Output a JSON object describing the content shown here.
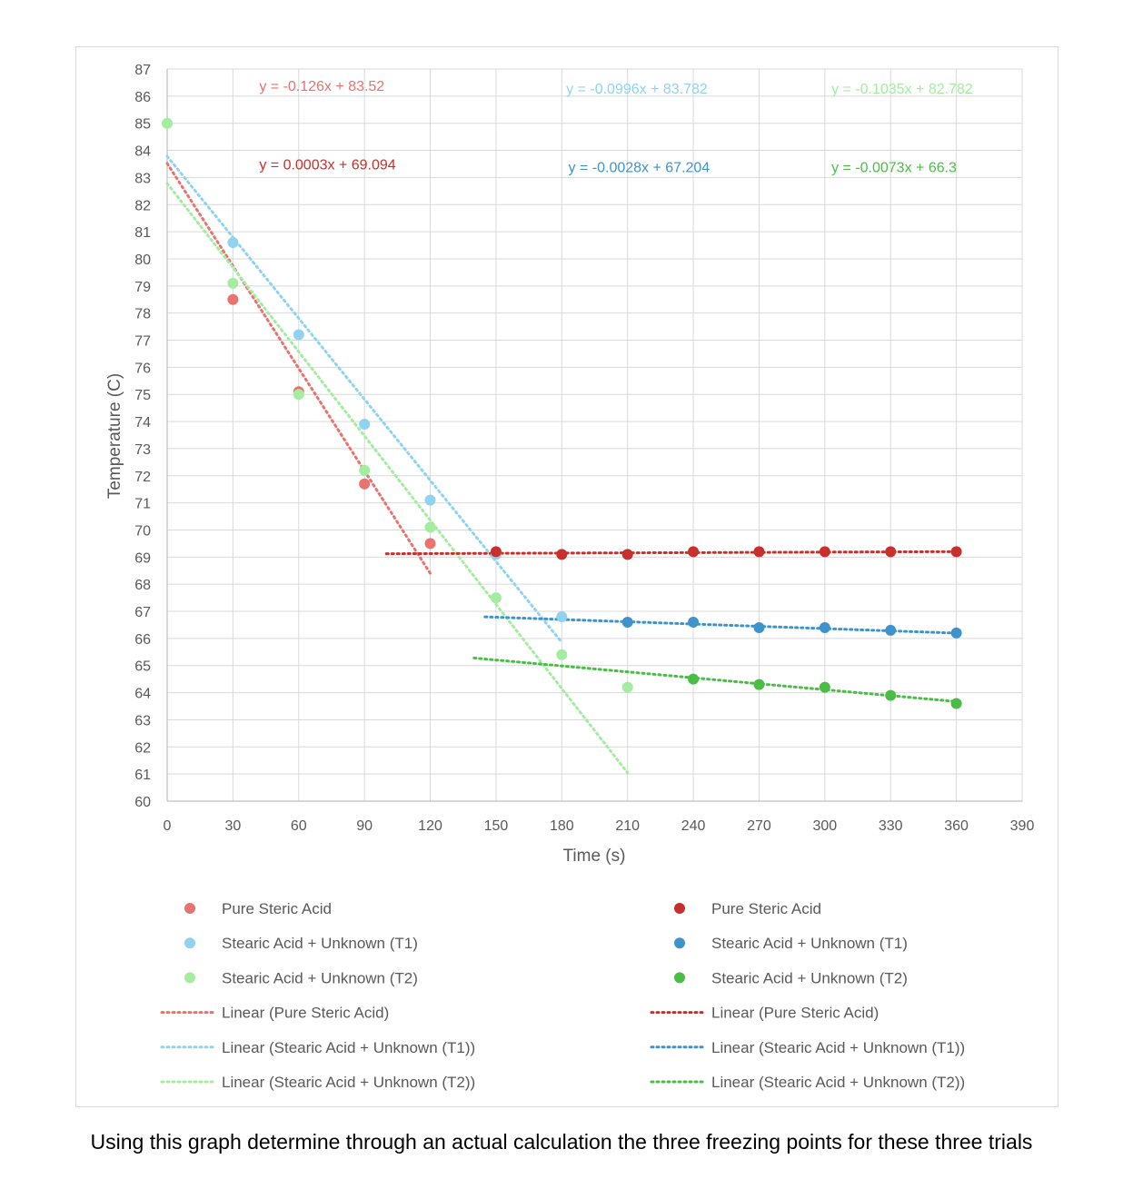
{
  "colors": {
    "pure_light": "#e8736f",
    "t1_light": "#8fd3f1",
    "t2_light": "#a3eca0",
    "pure_dark": "#c8302c",
    "t1_dark": "#3f93cc",
    "t2_dark": "#4bbd46",
    "grid": "#d9d9d9",
    "text": "#595959"
  },
  "chart_data": {
    "type": "scatter",
    "xlabel": "Time (s)",
    "ylabel": "Temperature (C)",
    "xlim": [
      0,
      390
    ],
    "ylim": [
      60,
      87
    ],
    "x_ticks": [
      0,
      30,
      60,
      90,
      120,
      150,
      180,
      210,
      240,
      270,
      300,
      330,
      360,
      390
    ],
    "y_ticks": [
      60,
      61,
      62,
      63,
      64,
      65,
      66,
      67,
      68,
      69,
      70,
      71,
      72,
      73,
      74,
      75,
      76,
      77,
      78,
      79,
      80,
      81,
      82,
      83,
      84,
      85,
      86,
      87
    ],
    "grid": true,
    "legend_position": "bottom, two columns",
    "series": [
      {
        "name": "Pure Steric Acid",
        "color": "#e8736f",
        "points": [
          [
            30,
            78.5
          ],
          [
            60,
            75.1
          ],
          [
            90,
            71.7
          ],
          [
            120,
            69.5
          ]
        ],
        "trend": {
          "name": "Linear (Pure Steric Acid)",
          "slope": -0.126,
          "intercept": 83.52,
          "x_range": [
            0,
            120
          ],
          "label": "y = -0.126x + 83.52",
          "label_at": [
            42,
            86.2
          ]
        }
      },
      {
        "name": "Stearic Acid + Unknown (T1)",
        "color": "#8fd3f1",
        "points": [
          [
            30,
            80.6
          ],
          [
            60,
            77.2
          ],
          [
            90,
            73.9
          ],
          [
            120,
            71.1
          ],
          [
            150,
            69.1
          ],
          [
            180,
            66.8
          ]
        ],
        "trend": {
          "name": "Linear (Stearic Acid + Unknown (T1))",
          "slope": -0.0996,
          "intercept": 83.782,
          "x_range": [
            0,
            180
          ],
          "label": "y = -0.0996x + 83.782",
          "label_at": [
            182,
            86.1
          ]
        }
      },
      {
        "name": "Stearic Acid + Unknown (T2)",
        "color": "#a3eca0",
        "points": [
          [
            0,
            85.0
          ],
          [
            30,
            79.1
          ],
          [
            60,
            75.0
          ],
          [
            90,
            72.2
          ],
          [
            120,
            70.1
          ],
          [
            150,
            67.5
          ],
          [
            180,
            65.4
          ],
          [
            210,
            64.2
          ]
        ],
        "trend": {
          "name": "Linear (Stearic Acid + Unknown (T2))",
          "slope": -0.1035,
          "intercept": 82.782,
          "x_range": [
            0,
            210
          ],
          "label": "y = -0.1035x + 82.782",
          "label_at": [
            303,
            86.1
          ]
        }
      },
      {
        "name": "Pure Steric Acid",
        "color": "#c8302c",
        "points": [
          [
            150,
            69.2
          ],
          [
            180,
            69.1
          ],
          [
            210,
            69.1
          ],
          [
            240,
            69.2
          ],
          [
            270,
            69.2
          ],
          [
            300,
            69.2
          ],
          [
            330,
            69.2
          ],
          [
            360,
            69.2
          ]
        ],
        "trend": {
          "name": "Linear (Pure Steric Acid)",
          "slope": 0.0003,
          "intercept": 69.094,
          "x_range": [
            100,
            360
          ],
          "label": "y = 0.0003x + 69.094",
          "label_at": [
            42,
            83.3
          ]
        }
      },
      {
        "name": "Stearic Acid + Unknown (T1)",
        "color": "#3f93cc",
        "points": [
          [
            210,
            66.6
          ],
          [
            240,
            66.6
          ],
          [
            270,
            66.4
          ],
          [
            300,
            66.4
          ],
          [
            330,
            66.3
          ],
          [
            360,
            66.2
          ]
        ],
        "trend": {
          "name": "Linear (Stearic Acid + Unknown (T1))",
          "slope": -0.0028,
          "intercept": 67.204,
          "x_range": [
            145,
            360
          ],
          "label": "y = -0.0028x + 67.204",
          "label_at": [
            183,
            83.2
          ]
        }
      },
      {
        "name": "Stearic Acid + Unknown (T2)",
        "color": "#4bbd46",
        "points": [
          [
            240,
            64.5
          ],
          [
            270,
            64.3
          ],
          [
            300,
            64.2
          ],
          [
            330,
            63.9
          ],
          [
            360,
            63.6
          ]
        ],
        "trend": {
          "name": "Linear (Stearic Acid + Unknown (T2))",
          "slope": -0.0073,
          "intercept": 66.3,
          "x_range": [
            140,
            360
          ],
          "label": "y = -0.0073x + 66.3",
          "label_at": [
            303,
            83.2
          ]
        }
      }
    ]
  },
  "question_text": "Using this graph determine through an actual calculation the three freezing points for these three trials"
}
